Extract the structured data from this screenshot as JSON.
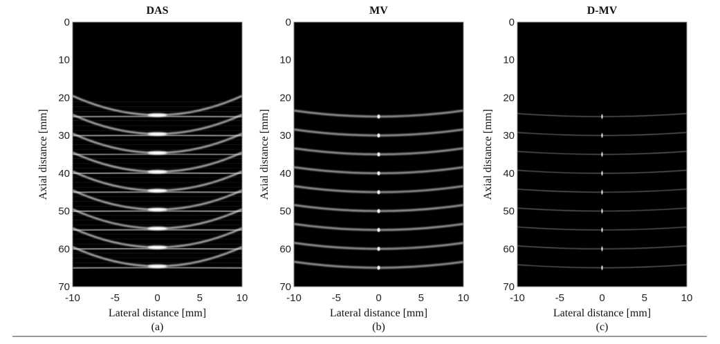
{
  "chart_data": [
    {
      "type": "heatmap",
      "title": "DAS",
      "caption": "(a)",
      "xlabel": "Lateral distance [mm]",
      "ylabel": "Axial distance [mm]",
      "xlim": [
        -10,
        10
      ],
      "ylim": [
        0,
        70
      ],
      "y_reversed": true,
      "xticks": [
        -10,
        -5,
        0,
        5,
        10
      ],
      "yticks": [
        0,
        10,
        20,
        30,
        40,
        50,
        60,
        70
      ],
      "colormap": "gray",
      "point_targets": {
        "lateral": 0,
        "axial": [
          25,
          30,
          35,
          40,
          45,
          50,
          55,
          60,
          65
        ]
      },
      "style": "das"
    },
    {
      "type": "heatmap",
      "title": "MV",
      "caption": "(b)",
      "xlabel": "Lateral distance [mm]",
      "ylabel": "Axial distance [mm]",
      "xlim": [
        -10,
        10
      ],
      "ylim": [
        0,
        70
      ],
      "y_reversed": true,
      "xticks": [
        -10,
        -5,
        0,
        5,
        10
      ],
      "yticks": [
        0,
        10,
        20,
        30,
        40,
        50,
        60,
        70
      ],
      "colormap": "gray",
      "point_targets": {
        "lateral": 0,
        "axial": [
          25,
          30,
          35,
          40,
          45,
          50,
          55,
          60,
          65
        ]
      },
      "style": "mv"
    },
    {
      "type": "heatmap",
      "title": "D-MV",
      "caption": "(c)",
      "xlabel": "Lateral distance [mm]",
      "ylabel": "Axial distance [mm]",
      "xlim": [
        -10,
        10
      ],
      "ylim": [
        0,
        70
      ],
      "y_reversed": true,
      "xticks": [
        -10,
        -5,
        0,
        5,
        10
      ],
      "yticks": [
        0,
        10,
        20,
        30,
        40,
        50,
        60,
        70
      ],
      "colormap": "gray",
      "point_targets": {
        "lateral": 0,
        "axial": [
          25,
          30,
          35,
          40,
          45,
          50,
          55,
          60,
          65
        ]
      },
      "style": "dmv"
    }
  ]
}
